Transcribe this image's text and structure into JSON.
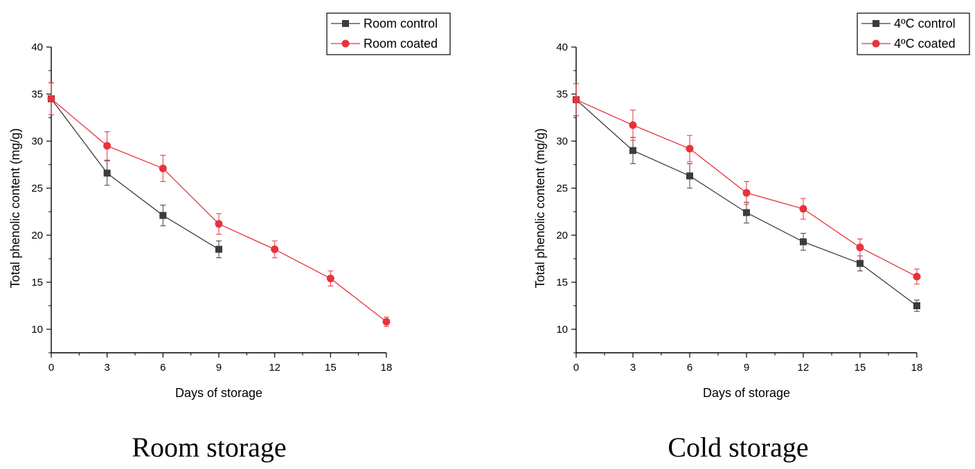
{
  "chart_data": [
    {
      "type": "line",
      "title": "Room storage",
      "xlabel": "Days of storage",
      "ylabel": "Total phenolic content (mg/g)",
      "xlim": [
        0,
        18
      ],
      "ylim": [
        7.5,
        40
      ],
      "xticks": [
        0,
        3,
        6,
        9,
        12,
        15,
        18
      ],
      "yticks": [
        10,
        15,
        20,
        25,
        30,
        35,
        40
      ],
      "legend_position": "top-right",
      "series": [
        {
          "name": "Room control",
          "color": "#3c3c3c",
          "marker": "square",
          "x": [
            0,
            3,
            6,
            9
          ],
          "y": [
            34.5,
            26.6,
            22.1,
            18.5
          ],
          "err": [
            1.7,
            1.3,
            1.1,
            0.9
          ]
        },
        {
          "name": "Room coated",
          "color": "#e8323c",
          "marker": "circle",
          "x": [
            0,
            3,
            6,
            9,
            12,
            15,
            18
          ],
          "y": [
            34.5,
            29.5,
            27.1,
            21.2,
            18.5,
            15.4,
            10.8
          ],
          "err": [
            1.7,
            1.5,
            1.4,
            1.1,
            0.9,
            0.8,
            0.5
          ]
        }
      ]
    },
    {
      "type": "line",
      "title": "Cold storage",
      "xlabel": "Days of storage",
      "ylabel": "Total phenolic content (mg/g)",
      "xlim": [
        0,
        18
      ],
      "ylim": [
        7.5,
        40
      ],
      "xticks": [
        0,
        3,
        6,
        9,
        12,
        15,
        18
      ],
      "yticks": [
        10,
        15,
        20,
        25,
        30,
        35,
        40
      ],
      "legend_position": "top-right",
      "series": [
        {
          "name": "4ºC control",
          "color": "#3c3c3c",
          "marker": "square",
          "x": [
            0,
            3,
            6,
            9,
            12,
            15,
            18
          ],
          "y": [
            34.4,
            29.0,
            26.3,
            22.4,
            19.3,
            17.0,
            12.5
          ],
          "err": [
            1.7,
            1.4,
            1.3,
            1.1,
            0.9,
            0.8,
            0.6
          ]
        },
        {
          "name": "4ºC coated",
          "color": "#e8323c",
          "marker": "circle",
          "x": [
            0,
            3,
            6,
            9,
            12,
            15,
            18
          ],
          "y": [
            34.4,
            31.7,
            29.2,
            24.5,
            22.8,
            18.7,
            15.6
          ],
          "err": [
            1.7,
            1.6,
            1.4,
            1.2,
            1.1,
            0.9,
            0.8
          ]
        }
      ]
    }
  ]
}
